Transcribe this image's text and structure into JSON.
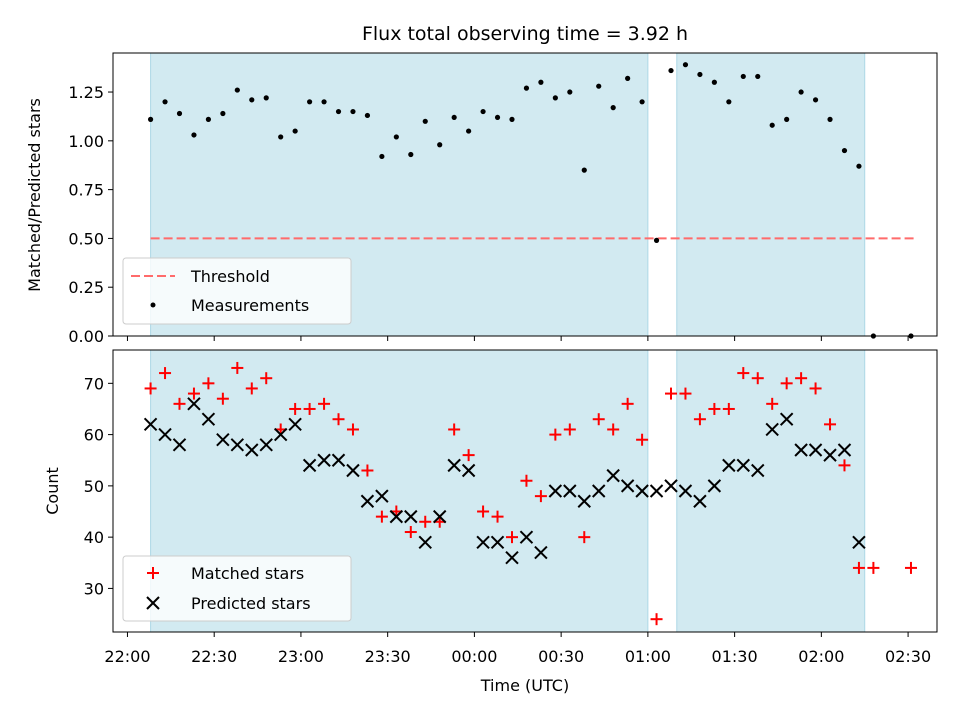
{
  "title": "Flux total observing time = 3.92 h",
  "x_axis": {
    "label": "Time (UTC)",
    "ticks": [
      {
        "min": 0,
        "label": "22:00"
      },
      {
        "min": 30,
        "label": "22:30"
      },
      {
        "min": 60,
        "label": "23:00"
      },
      {
        "min": 90,
        "label": "23:30"
      },
      {
        "min": 120,
        "label": "00:00"
      },
      {
        "min": 150,
        "label": "00:30"
      },
      {
        "min": 180,
        "label": "01:00"
      },
      {
        "min": 210,
        "label": "01:30"
      },
      {
        "min": 240,
        "label": "02:00"
      },
      {
        "min": 270,
        "label": "02:30"
      }
    ],
    "range": [
      "21:55",
      "02:40"
    ]
  },
  "colors": {
    "band": "#add8e6",
    "threshold": "#ff6b6b",
    "matched": "#ff0000",
    "predicted": "#000000",
    "measurements": "#000000"
  },
  "chart_data": [
    {
      "type": "scatter",
      "panel": "top",
      "ylabel": "Matched/Predicted stars",
      "ylim": [
        0,
        1.45
      ],
      "yticks": [
        "0.00",
        "0.25",
        "0.50",
        "0.75",
        "1.00",
        "1.25"
      ],
      "legend_placement": "lower-left",
      "shaded_intervals": [
        [
          "22:08",
          "01:00"
        ],
        [
          "01:10",
          "02:15"
        ]
      ],
      "threshold": {
        "name": "Threshold",
        "value": 0.5,
        "x_range": [
          "22:08",
          "02:32"
        ]
      },
      "series": [
        {
          "name": "Measurements",
          "marker": "dot",
          "points": [
            [
              "22:08",
              1.11
            ],
            [
              "22:13",
              1.2
            ],
            [
              "22:18",
              1.14
            ],
            [
              "22:23",
              1.03
            ],
            [
              "22:28",
              1.11
            ],
            [
              "22:33",
              1.14
            ],
            [
              "22:38",
              1.26
            ],
            [
              "22:43",
              1.21
            ],
            [
              "22:48",
              1.22
            ],
            [
              "22:53",
              1.02
            ],
            [
              "22:58",
              1.05
            ],
            [
              "23:03",
              1.2
            ],
            [
              "23:08",
              1.2
            ],
            [
              "23:13",
              1.15
            ],
            [
              "23:18",
              1.15
            ],
            [
              "23:23",
              1.13
            ],
            [
              "23:28",
              0.92
            ],
            [
              "23:33",
              1.02
            ],
            [
              "23:38",
              0.93
            ],
            [
              "23:43",
              1.1
            ],
            [
              "23:48",
              0.98
            ],
            [
              "23:53",
              1.12
            ],
            [
              "23:58",
              1.05
            ],
            [
              "00:03",
              1.15
            ],
            [
              "00:08",
              1.12
            ],
            [
              "00:13",
              1.11
            ],
            [
              "00:18",
              1.27
            ],
            [
              "00:23",
              1.3
            ],
            [
              "00:28",
              1.22
            ],
            [
              "00:33",
              1.25
            ],
            [
              "00:38",
              0.85
            ],
            [
              "00:43",
              1.28
            ],
            [
              "00:48",
              1.17
            ],
            [
              "00:53",
              1.32
            ],
            [
              "00:58",
              1.2
            ],
            [
              "01:03",
              0.49
            ],
            [
              "01:08",
              1.36
            ],
            [
              "01:13",
              1.39
            ],
            [
              "01:18",
              1.34
            ],
            [
              "01:23",
              1.3
            ],
            [
              "01:28",
              1.2
            ],
            [
              "01:33",
              1.33
            ],
            [
              "01:38",
              1.33
            ],
            [
              "01:43",
              1.08
            ],
            [
              "01:48",
              1.11
            ],
            [
              "01:53",
              1.25
            ],
            [
              "01:58",
              1.21
            ],
            [
              "02:03",
              1.11
            ],
            [
              "02:08",
              0.95
            ],
            [
              "02:13",
              0.87
            ],
            [
              "02:18",
              0.0
            ],
            [
              "02:31",
              0.0
            ]
          ]
        }
      ]
    },
    {
      "type": "scatter",
      "panel": "bottom",
      "ylabel": "Count",
      "ylim": [
        21.5,
        76.5
      ],
      "yticks": [
        "30",
        "40",
        "50",
        "60",
        "70"
      ],
      "legend_placement": "lower-left",
      "shaded_intervals": [
        [
          "22:08",
          "01:00"
        ],
        [
          "01:10",
          "02:15"
        ]
      ],
      "series": [
        {
          "name": "Matched stars",
          "marker": "plus",
          "points": [
            [
              "22:08",
              69
            ],
            [
              "22:13",
              72
            ],
            [
              "22:18",
              66
            ],
            [
              "22:23",
              68
            ],
            [
              "22:28",
              70
            ],
            [
              "22:33",
              67
            ],
            [
              "22:38",
              73
            ],
            [
              "22:43",
              69
            ],
            [
              "22:48",
              71
            ],
            [
              "22:53",
              61
            ],
            [
              "22:58",
              65
            ],
            [
              "23:03",
              65
            ],
            [
              "23:08",
              66
            ],
            [
              "23:13",
              63
            ],
            [
              "23:18",
              61
            ],
            [
              "23:23",
              53
            ],
            [
              "23:28",
              44
            ],
            [
              "23:33",
              45
            ],
            [
              "23:38",
              41
            ],
            [
              "23:43",
              43
            ],
            [
              "23:48",
              43
            ],
            [
              "23:53",
              61
            ],
            [
              "23:58",
              56
            ],
            [
              "00:03",
              45
            ],
            [
              "00:08",
              44
            ],
            [
              "00:13",
              40
            ],
            [
              "00:18",
              51
            ],
            [
              "00:23",
              48
            ],
            [
              "00:28",
              60
            ],
            [
              "00:33",
              61
            ],
            [
              "00:38",
              40
            ],
            [
              "00:43",
              63
            ],
            [
              "00:48",
              61
            ],
            [
              "00:53",
              66
            ],
            [
              "00:58",
              59
            ],
            [
              "01:03",
              24
            ],
            [
              "01:08",
              68
            ],
            [
              "01:13",
              68
            ],
            [
              "01:18",
              63
            ],
            [
              "01:23",
              65
            ],
            [
              "01:28",
              65
            ],
            [
              "01:33",
              72
            ],
            [
              "01:38",
              71
            ],
            [
              "01:43",
              66
            ],
            [
              "01:48",
              70
            ],
            [
              "01:53",
              71
            ],
            [
              "01:58",
              69
            ],
            [
              "02:03",
              62
            ],
            [
              "02:08",
              54
            ],
            [
              "02:13",
              34
            ],
            [
              "02:18",
              34
            ],
            [
              "02:31",
              34
            ]
          ]
        },
        {
          "name": "Predicted stars",
          "marker": "x",
          "points": [
            [
              "22:08",
              62
            ],
            [
              "22:13",
              60
            ],
            [
              "22:18",
              58
            ],
            [
              "22:23",
              66
            ],
            [
              "22:28",
              63
            ],
            [
              "22:33",
              59
            ],
            [
              "22:38",
              58
            ],
            [
              "22:43",
              57
            ],
            [
              "22:48",
              58
            ],
            [
              "22:53",
              60
            ],
            [
              "22:58",
              62
            ],
            [
              "23:03",
              54
            ],
            [
              "23:08",
              55
            ],
            [
              "23:13",
              55
            ],
            [
              "23:18",
              53
            ],
            [
              "23:23",
              47
            ],
            [
              "23:28",
              48
            ],
            [
              "23:33",
              44
            ],
            [
              "23:38",
              44
            ],
            [
              "23:43",
              39
            ],
            [
              "23:48",
              44
            ],
            [
              "23:53",
              54
            ],
            [
              "23:58",
              53
            ],
            [
              "00:03",
              39
            ],
            [
              "00:08",
              39
            ],
            [
              "00:13",
              36
            ],
            [
              "00:18",
              40
            ],
            [
              "00:23",
              37
            ],
            [
              "00:28",
              49
            ],
            [
              "00:33",
              49
            ],
            [
              "00:38",
              47
            ],
            [
              "00:43",
              49
            ],
            [
              "00:48",
              52
            ],
            [
              "00:53",
              50
            ],
            [
              "00:58",
              49
            ],
            [
              "01:03",
              49
            ],
            [
              "01:08",
              50
            ],
            [
              "01:13",
              49
            ],
            [
              "01:18",
              47
            ],
            [
              "01:23",
              50
            ],
            [
              "01:28",
              54
            ],
            [
              "01:33",
              54
            ],
            [
              "01:38",
              53
            ],
            [
              "01:43",
              61
            ],
            [
              "01:48",
              63
            ],
            [
              "01:53",
              57
            ],
            [
              "01:58",
              57
            ],
            [
              "02:03",
              56
            ],
            [
              "02:08",
              57
            ],
            [
              "02:13",
              39
            ]
          ]
        }
      ]
    }
  ]
}
